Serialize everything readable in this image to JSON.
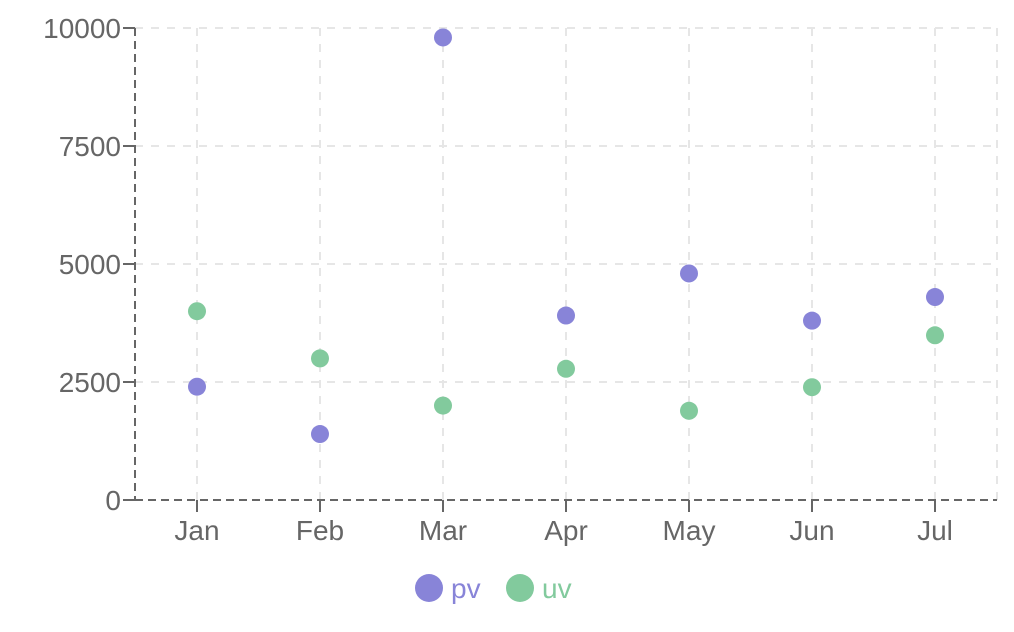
{
  "chart_data": {
    "type": "scatter",
    "title": "",
    "xlabel": "",
    "ylabel": "",
    "categories": [
      "Jan",
      "Feb",
      "Mar",
      "Apr",
      "May",
      "Jun",
      "Jul"
    ],
    "yticks": [
      0,
      2500,
      5000,
      7500,
      10000
    ],
    "ytick_labels": [
      "0",
      "2500",
      "5000",
      "7500",
      "10000"
    ],
    "ylim": [
      0,
      10000
    ],
    "grid": true,
    "legend_position": "bottom",
    "series": [
      {
        "name": "pv",
        "color": "#8884d8",
        "values": [
          2400,
          1398,
          9800,
          3908,
          4800,
          3800,
          4300
        ]
      },
      {
        "name": "uv",
        "color": "#82ca9d",
        "values": [
          4000,
          3000,
          2000,
          2780,
          1890,
          2390,
          3490
        ]
      }
    ]
  }
}
